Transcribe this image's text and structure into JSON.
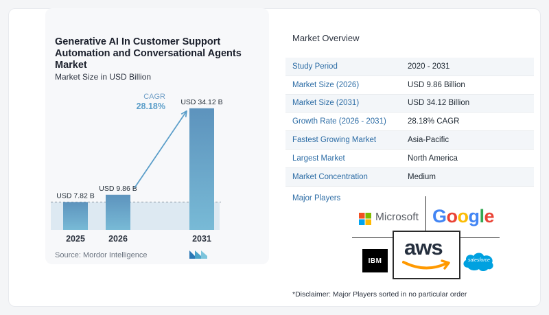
{
  "chart_data": {
    "type": "bar",
    "title": "Generative AI In Customer Support Automation and Conversational Agents Market",
    "subtitle": "Market Size in USD Billion",
    "categories": [
      "2025",
      "2026",
      "2031"
    ],
    "values": [
      7.82,
      9.86,
      34.12
    ],
    "value_labels": [
      "USD 7.82 B",
      "USD 9.86 B",
      "USD 34.12 B"
    ],
    "cagr_label": "CAGR",
    "cagr_value": "28.18%",
    "ylim": [
      0,
      36
    ],
    "grid": false,
    "bar_color": "#5b9ec9",
    "source": "Source:  Mordor Intelligence"
  },
  "overview": {
    "title": "Market Overview",
    "rows": [
      {
        "key": "Study Period",
        "value": "2020 - 2031"
      },
      {
        "key": "Market Size (2026)",
        "value": "USD 9.86 Billion"
      },
      {
        "key": "Market Size (2031)",
        "value": "USD 34.12 Billion"
      },
      {
        "key": "Growth Rate (2026 - 2031)",
        "value": "28.18% CAGR"
      },
      {
        "key": "Fastest Growing Market",
        "value": "Asia-Pacific"
      },
      {
        "key": "Largest Market",
        "value": "North America"
      },
      {
        "key": "Market Concentration",
        "value": "Medium"
      }
    ]
  },
  "players": {
    "title": "Major Players",
    "microsoft": "Microsoft",
    "google": "Google",
    "aws": "aws",
    "ibm": "IBM",
    "salesforce": "salesforce"
  },
  "disclaimer": "*Disclaimer: Major Players sorted in no particular order"
}
